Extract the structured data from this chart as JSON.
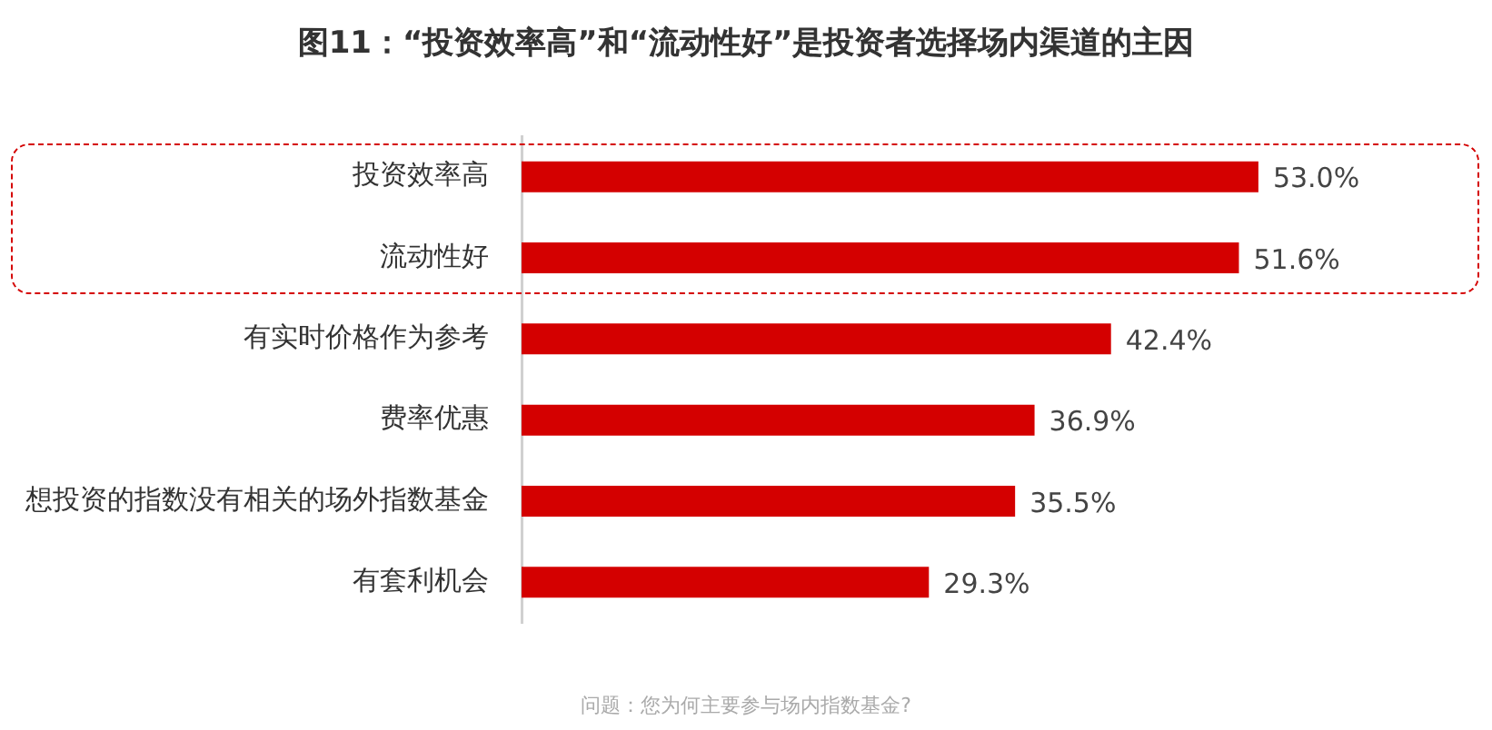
{
  "chart_data": {
    "type": "bar",
    "orientation": "horizontal",
    "title": "图11：“投资效率高”和“流动性好”是投资者选择场内渠道的主因",
    "annotations": [
      "问题：您为何主要参与场内指数基金?"
    ],
    "categories": [
      "投资效率高",
      "流动性好",
      "有实时价格作为参考",
      "费率优惠",
      "想投资的指数没有相关的场外指数基金",
      "有套利机会"
    ],
    "values": [
      53.0,
      51.6,
      42.4,
      36.9,
      35.5,
      29.3
    ],
    "value_labels": [
      "53.0%",
      "51.6%",
      "42.4%",
      "36.9%",
      "35.5%",
      "29.3%"
    ],
    "color": "#d40000",
    "grid": false,
    "legend": false,
    "tick_labels": "y"
  }
}
